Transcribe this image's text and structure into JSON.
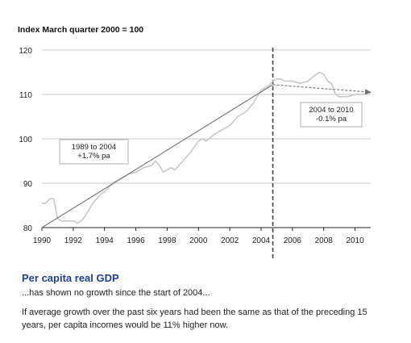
{
  "chart_data": {
    "type": "line",
    "ylabel": "Index March quarter 2000 = 100",
    "ylim": [
      80,
      120
    ],
    "yticks": [
      80,
      90,
      100,
      110,
      120
    ],
    "xlim": [
      1990,
      2011
    ],
    "xticks": [
      "1990",
      "1992",
      "1994",
      "1996",
      "1998",
      "2000",
      "2002",
      "2004",
      "2006",
      "2008",
      "2010"
    ],
    "grid": true,
    "series": [
      {
        "role": "actual",
        "color": "#c8c8c8",
        "x": [
          1990,
          1990.25,
          1990.5,
          1990.75,
          1991,
          1991.25,
          1991.5,
          1991.75,
          1992,
          1992.25,
          1992.5,
          1992.75,
          1993,
          1993.25,
          1993.5,
          1993.75,
          1994,
          1994.5,
          1995,
          1995.5,
          1996,
          1996.5,
          1997,
          1997.25,
          1997.5,
          1997.75,
          1998,
          1998.25,
          1998.5,
          1999,
          1999.5,
          2000,
          2000.25,
          2000.5,
          2001,
          2001.5,
          2002,
          2002.5,
          2003,
          2003.5,
          2004,
          2004.5,
          2004.75,
          2005,
          2005.25,
          2005.5,
          2006,
          2006.5,
          2007,
          2007.5,
          2007.75,
          2008,
          2008.25,
          2008.5,
          2008.75,
          2009,
          2009.25,
          2009.5,
          2010,
          2010.5,
          2011
        ],
        "y": [
          85.5,
          85.5,
          86.5,
          86.5,
          82,
          81.5,
          81.5,
          81.5,
          81.5,
          81,
          81.5,
          82.5,
          84,
          85.5,
          86.5,
          87.5,
          88,
          90,
          91,
          92,
          92.5,
          93.5,
          94,
          95,
          94,
          92.5,
          93,
          93.5,
          93,
          95,
          97,
          99.5,
          100,
          99.5,
          101,
          102,
          103,
          105,
          106,
          108,
          111,
          112,
          113,
          113.5,
          113.5,
          113,
          113,
          112.5,
          113,
          114.5,
          115,
          114.5,
          113,
          112.5,
          110,
          109.5,
          109.5,
          109.5,
          110,
          110,
          110.5
        ]
      },
      {
        "role": "trend 1989 to 2004",
        "color": "#7a7a7a",
        "x": [
          1990,
          2004.75
        ],
        "y": [
          80,
          112.2
        ]
      },
      {
        "role": "trend 2004 to 2010",
        "color": "#7a7a7a",
        "dashed": true,
        "x": [
          2004.75,
          2011
        ],
        "y": [
          112.2,
          110.5
        ]
      }
    ],
    "marker_x": 2004.75,
    "annotations": [
      {
        "lines": [
          "1989 to 2004",
          "+1.7% pa"
        ]
      },
      {
        "lines": [
          "2004 to 2010",
          "-0.1% pa"
        ]
      }
    ]
  },
  "caption": {
    "title": "Per capita real GDP",
    "subtitle": "...has shown no growth since the start of 2004...",
    "body": "If average growth over the past six years had been the same as that of the preceding 15 years, per capita incomes would be 11% higher now."
  }
}
